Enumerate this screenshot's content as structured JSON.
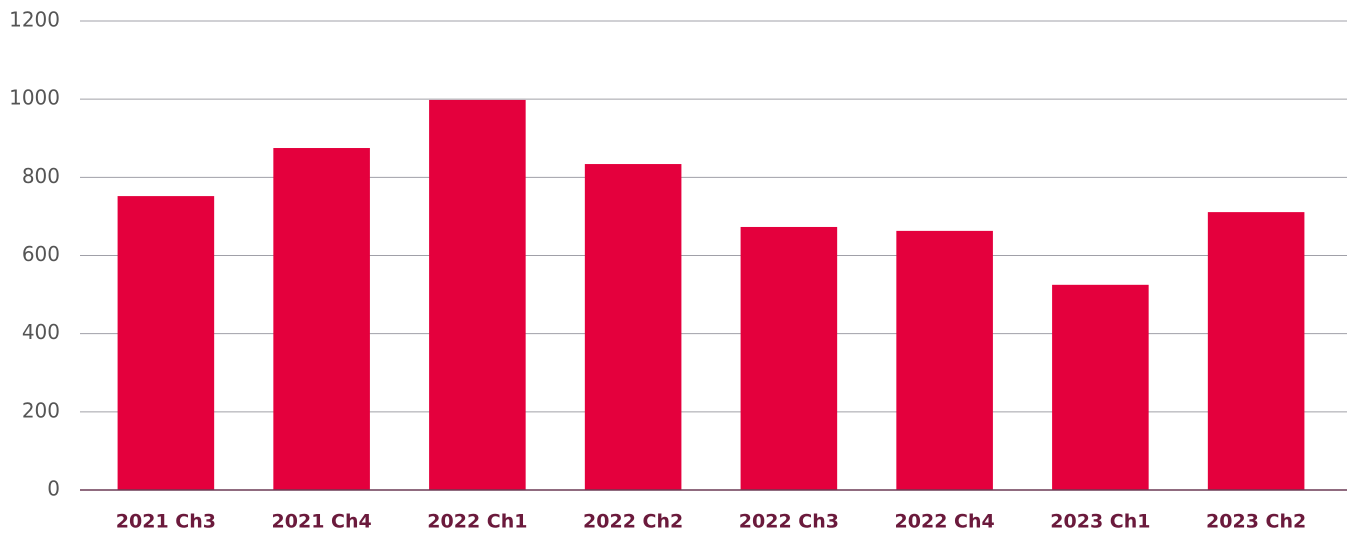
{
  "chart_data": {
    "type": "bar",
    "categories": [
      "2021 Ch3",
      "2021 Ch4",
      "2022 Ch1",
      "2022 Ch2",
      "2022 Ch3",
      "2022 Ch4",
      "2023 Ch1",
      "2023 Ch2"
    ],
    "values": [
      752,
      875,
      998,
      834,
      673,
      663,
      525,
      711
    ],
    "color": "#e4003d",
    "ylim": [
      0,
      1200
    ],
    "yticks": [
      0,
      200,
      400,
      600,
      800,
      1000,
      1200
    ],
    "grid": true
  }
}
